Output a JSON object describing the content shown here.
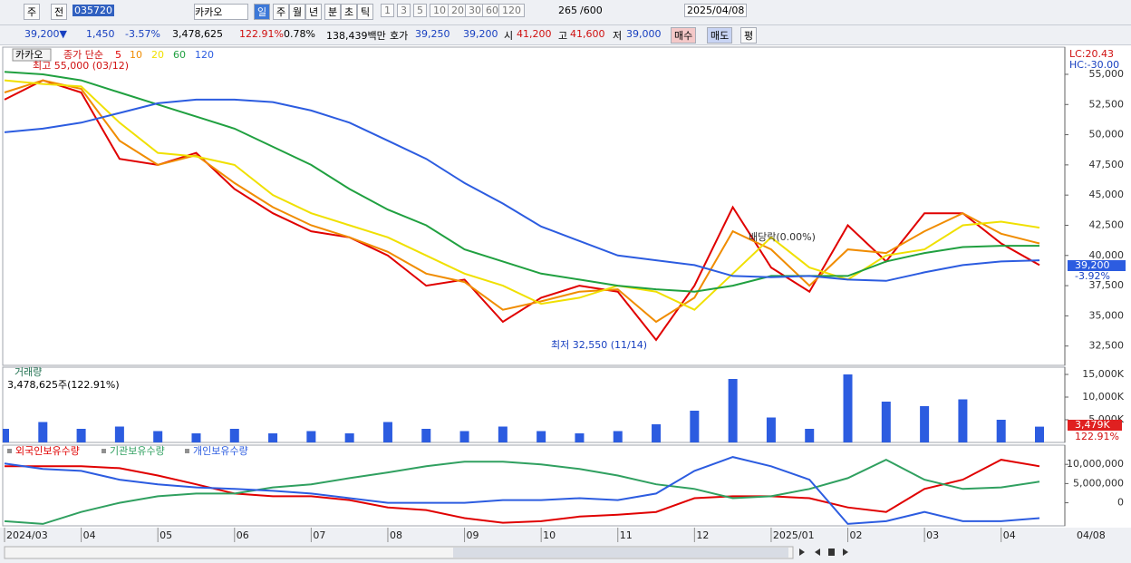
{
  "toolbar": {
    "row1": [
      "주",
      "전",
      "035720",
      "카카오",
      "일",
      "주",
      "월",
      "년",
      "분",
      "초",
      "틱",
      "1",
      "3",
      "5",
      "10",
      "20",
      "30",
      "60",
      "120",
      "265",
      "/600",
      "2025/04/08"
    ],
    "row2": [
      "39,200▼",
      "1,450",
      "-3.57%",
      "3,478,625",
      "122.91%",
      "0.78%",
      "138,439백만",
      "호가",
      "39,250",
      "39,200",
      "시",
      "41,200",
      "고",
      "41,600",
      "저",
      "39,000",
      "매수",
      "매도",
      "평"
    ]
  },
  "chart_data": [
    {
      "type": "line",
      "title": "카카오",
      "legend_title": "종가 단순",
      "categories": [
        "2024/03",
        null,
        "04",
        null,
        "05",
        null,
        "06",
        null,
        "07",
        null,
        "08",
        null,
        "09",
        null,
        "10",
        null,
        "11",
        null,
        "12",
        null,
        "2025/01",
        null,
        "02",
        null,
        "03",
        null,
        "04",
        null
      ],
      "x_end_label": "04/08",
      "series": [
        {
          "name": "5",
          "color": "#e00000",
          "values": [
            52900,
            54500,
            53500,
            48000,
            47500,
            48500,
            45500,
            43500,
            42000,
            41500,
            40000,
            37500,
            38000,
            34500,
            36500,
            37500,
            37000,
            33000,
            37500,
            44000,
            39000,
            37000,
            42500,
            39500,
            43500,
            43500,
            41000,
            39200
          ]
        },
        {
          "name": "10",
          "color": "#f08c00",
          "values": [
            53500,
            54500,
            53800,
            49500,
            47500,
            48300,
            46000,
            44000,
            42500,
            41500,
            40300,
            38500,
            37800,
            35500,
            36200,
            37000,
            37200,
            34500,
            36500,
            42000,
            40500,
            37500,
            40500,
            40200,
            42000,
            43500,
            41800,
            41000
          ]
        },
        {
          "name": "20",
          "color": "#f0e000",
          "values": [
            54500,
            54200,
            54000,
            51000,
            48500,
            48200,
            47500,
            45000,
            43500,
            42500,
            41500,
            40000,
            38500,
            37500,
            36000,
            36500,
            37500,
            37000,
            35500,
            38500,
            41500,
            39000,
            38000,
            40000,
            40500,
            42500,
            42800,
            42300
          ]
        },
        {
          "name": "60",
          "color": "#20a040",
          "values": [
            55200,
            55000,
            54500,
            53500,
            52500,
            51500,
            50500,
            49000,
            47500,
            45500,
            43800,
            42500,
            40500,
            39500,
            38500,
            38000,
            37500,
            37200,
            37000,
            37500,
            38300,
            38300,
            38300,
            39500,
            40200,
            40700,
            40800,
            40800
          ]
        },
        {
          "name": "120",
          "color": "#2c5ce0",
          "values": [
            50200,
            50500,
            51000,
            51800,
            52600,
            52900,
            52900,
            52700,
            52000,
            51000,
            49500,
            48000,
            46000,
            44300,
            42400,
            41200,
            40000,
            39600,
            39200,
            38300,
            38200,
            38300,
            38000,
            37900,
            38600,
            39200,
            39500,
            39600
          ]
        }
      ],
      "ylim": [
        30900,
        57250
      ],
      "yticks": [
        {
          "value": 32500,
          "label": "32,500"
        },
        {
          "value": 35000,
          "label": "35,000"
        },
        {
          "value": 37500,
          "label": "37,500"
        },
        {
          "value": 40000,
          "label": "40,000"
        },
        {
          "value": 42500,
          "label": "42,500"
        },
        {
          "value": 45000,
          "label": "45,000"
        },
        {
          "value": 47500,
          "label": "47,500"
        },
        {
          "value": 50000,
          "label": "50,000"
        },
        {
          "value": 52500,
          "label": "52,500"
        },
        {
          "value": 55000,
          "label": "55,000"
        }
      ],
      "annotations": [
        "최고 55,000 (03/12)",
        "최저 32,550 (11/14)",
        "배당락(0.00%)"
      ],
      "right_labels": [
        "LC:20.43",
        "HC:-30.00"
      ],
      "last_labels": [
        "39,200",
        "-3.92%"
      ]
    },
    {
      "type": "bar",
      "title": "거래량",
      "subtitle": "3,478,625주(122.91%)",
      "color": "#2c5ce0",
      "values": [
        3000,
        4500,
        3000,
        3500,
        2500,
        2000,
        3000,
        2000,
        2500,
        2000,
        4500,
        3000,
        2500,
        3500,
        2500,
        2000,
        2500,
        4000,
        7000,
        14000,
        5500,
        3000,
        15000,
        9000,
        8000,
        9500,
        5000,
        3479
      ],
      "ylim": [
        0,
        16600
      ],
      "yticks": [
        {
          "value": 5000,
          "label": "5,000K"
        },
        {
          "value": 10000,
          "label": "10,000K"
        },
        {
          "value": 15000,
          "label": "15,000K"
        }
      ],
      "last_labels": [
        "3,479K",
        "122.91%"
      ]
    },
    {
      "type": "line",
      "series": [
        {
          "name": "외국인보유수량",
          "color": "#e00000",
          "values": [
            9500000,
            9500000,
            9500000,
            9000000,
            7100000,
            4800000,
            2400000,
            1700000,
            1700000,
            700000,
            -1200000,
            -1900000,
            -4000000,
            -5200000,
            -4800000,
            -3600000,
            -3100000,
            -2400000,
            1200000,
            1700000,
            1700000,
            1200000,
            -1200000,
            -2400000,
            3600000,
            6000000,
            11200000,
            9500000
          ]
        },
        {
          "name": "기관보유수량",
          "color": "#30a060",
          "values": [
            -4800000,
            -5500000,
            -2400000,
            0,
            1700000,
            2400000,
            2400000,
            4000000,
            4800000,
            6400000,
            7900000,
            9500000,
            10700000,
            10700000,
            10000000,
            8800000,
            7100000,
            4800000,
            3600000,
            1200000,
            1700000,
            3600000,
            6400000,
            11200000,
            6000000,
            3600000,
            4000000,
            5500000
          ]
        },
        {
          "name": "개인보유수량",
          "color": "#2c5ce0",
          "values": [
            10200000,
            8800000,
            8300000,
            6000000,
            4800000,
            4000000,
            3600000,
            3100000,
            2400000,
            1200000,
            0,
            0,
            0,
            700000,
            700000,
            1200000,
            700000,
            2400000,
            8300000,
            11900000,
            9500000,
            6000000,
            -5500000,
            -4800000,
            -2400000,
            -4800000,
            -4800000,
            -4000000
          ]
        }
      ],
      "ylim": [
        -6000000,
        15000000
      ],
      "yticks": [
        0,
        {
          "value": 5000000,
          "label": "5,000,000"
        },
        {
          "value": 10000000,
          "label": "10,000,000"
        }
      ]
    }
  ]
}
